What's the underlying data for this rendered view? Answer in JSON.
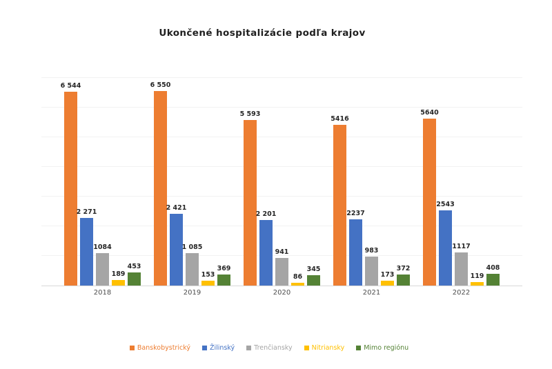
{
  "chart_data": {
    "type": "bar",
    "title": "Ukončené hospitalizácie podľa krajov",
    "categories": [
      "2018",
      "2019",
      "2020",
      "2021",
      "2022"
    ],
    "series": [
      {
        "name": "Banskobystrický",
        "color": "#ED7D31",
        "values": [
          6544,
          6550,
          5593,
          5416,
          5640
        ],
        "labels": [
          "6 544",
          "6 550",
          "5 593",
          "5416",
          "5640"
        ]
      },
      {
        "name": "Žilinský",
        "color": "#4472C4",
        "values": [
          2271,
          2421,
          2201,
          2237,
          2543
        ],
        "labels": [
          "2 271",
          "2 421",
          "2 201",
          "2237",
          "2543"
        ]
      },
      {
        "name": "Trenčiansky",
        "color": "#A5A5A5",
        "values": [
          1084,
          1085,
          941,
          983,
          1117
        ],
        "labels": [
          "1084",
          "1 085",
          "941",
          "983",
          "1117"
        ]
      },
      {
        "name": "Nitriansky",
        "color": "#FFC000",
        "values": [
          189,
          153,
          86,
          173,
          119
        ],
        "labels": [
          "189",
          "153",
          "86",
          "173",
          "119"
        ]
      },
      {
        "name": "Mimo regiónu",
        "color": "#548235",
        "values": [
          453,
          369,
          345,
          372,
          408
        ],
        "labels": [
          "453",
          "369",
          "345",
          "372",
          "408"
        ]
      }
    ],
    "xlabel": "",
    "ylabel": "",
    "ylim": [
      0,
      7000
    ],
    "grid": "horizontal-faint-every-1000",
    "legend_position": "bottom",
    "data_labels": "above-bars-bold",
    "axis_line_color": "#d9d9d9",
    "gridline_color": "#f2f2f2",
    "label_text_color": "#262626",
    "category_text_color": "#4d4d4d",
    "background_color": "#ffffff"
  }
}
